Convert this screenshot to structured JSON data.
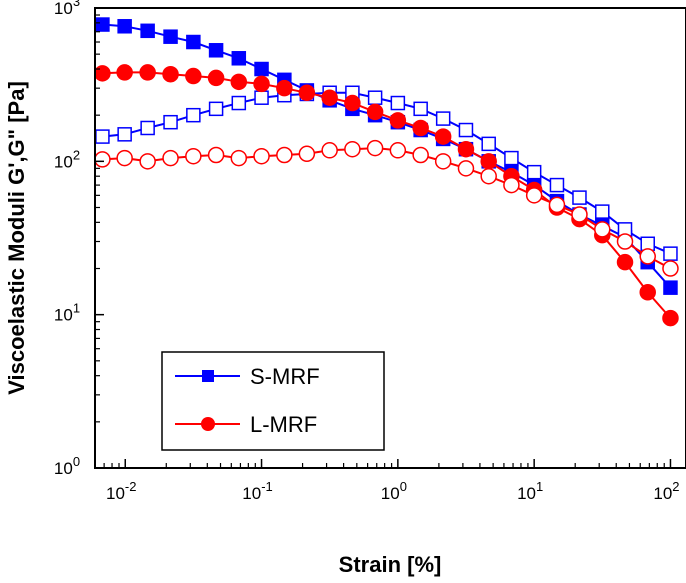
{
  "chart_data": {
    "type": "line",
    "title": "",
    "xlabel": "Strain [%]",
    "ylabel": "Viscoelastic Moduli G',G\" [Pa]",
    "xscale": "log",
    "yscale": "log",
    "xlim": [
      0.006,
      130
    ],
    "ylim": [
      1,
      1000
    ],
    "x_ticks": [
      {
        "base": "10",
        "exp": "-2",
        "value": 0.01
      },
      {
        "base": "10",
        "exp": "-1",
        "value": 0.1
      },
      {
        "base": "10",
        "exp": "0",
        "value": 1
      },
      {
        "base": "10",
        "exp": "1",
        "value": 10
      },
      {
        "base": "10",
        "exp": "2",
        "value": 100
      }
    ],
    "y_ticks": [
      {
        "base": "10",
        "exp": "0",
        "value": 1
      },
      {
        "base": "10",
        "exp": "1",
        "value": 10
      },
      {
        "base": "10",
        "exp": "2",
        "value": 100
      },
      {
        "base": "10",
        "exp": "3",
        "value": 1000
      }
    ],
    "x": [
      0.0068,
      0.0099,
      0.0146,
      0.0215,
      0.0316,
      0.0464,
      0.0681,
      0.1,
      0.147,
      0.215,
      0.316,
      0.464,
      0.681,
      1.0,
      1.47,
      2.15,
      3.16,
      4.64,
      6.81,
      10.0,
      14.7,
      21.5,
      31.6,
      46.4,
      68.1,
      100
    ],
    "series": [
      {
        "name": "S-MRF G'",
        "legend": "S-MRF",
        "color": "#0000ff",
        "marker": "square",
        "filled": true,
        "values": [
          780,
          760,
          710,
          650,
          600,
          530,
          470,
          400,
          340,
          290,
          250,
          220,
          200,
          180,
          160,
          140,
          120,
          100,
          85,
          70,
          55,
          45,
          38,
          32,
          22,
          15
        ]
      },
      {
        "name": "S-MRF G\"",
        "legend": "",
        "color": "#0000ff",
        "marker": "square",
        "filled": false,
        "values": [
          145,
          150,
          165,
          180,
          200,
          220,
          240,
          260,
          270,
          275,
          280,
          280,
          260,
          240,
          220,
          190,
          160,
          130,
          105,
          85,
          70,
          58,
          47,
          36,
          29,
          25
        ]
      },
      {
        "name": "L-MRF G'",
        "legend": "L-MRF",
        "color": "#ff0000",
        "marker": "circle",
        "filled": true,
        "values": [
          375,
          380,
          380,
          370,
          360,
          350,
          330,
          320,
          300,
          280,
          260,
          240,
          210,
          185,
          165,
          145,
          120,
          100,
          80,
          65,
          50,
          42,
          33,
          22,
          14,
          9.5
        ]
      },
      {
        "name": "L-MRF G\"",
        "legend": "",
        "color": "#ff0000",
        "marker": "circle",
        "filled": false,
        "values": [
          103,
          105,
          100,
          105,
          108,
          110,
          105,
          108,
          110,
          112,
          118,
          120,
          122,
          118,
          110,
          100,
          90,
          80,
          70,
          60,
          52,
          45,
          36,
          30,
          24,
          20
        ]
      }
    ],
    "legend_position": "bottom-left",
    "grid": false
  }
}
